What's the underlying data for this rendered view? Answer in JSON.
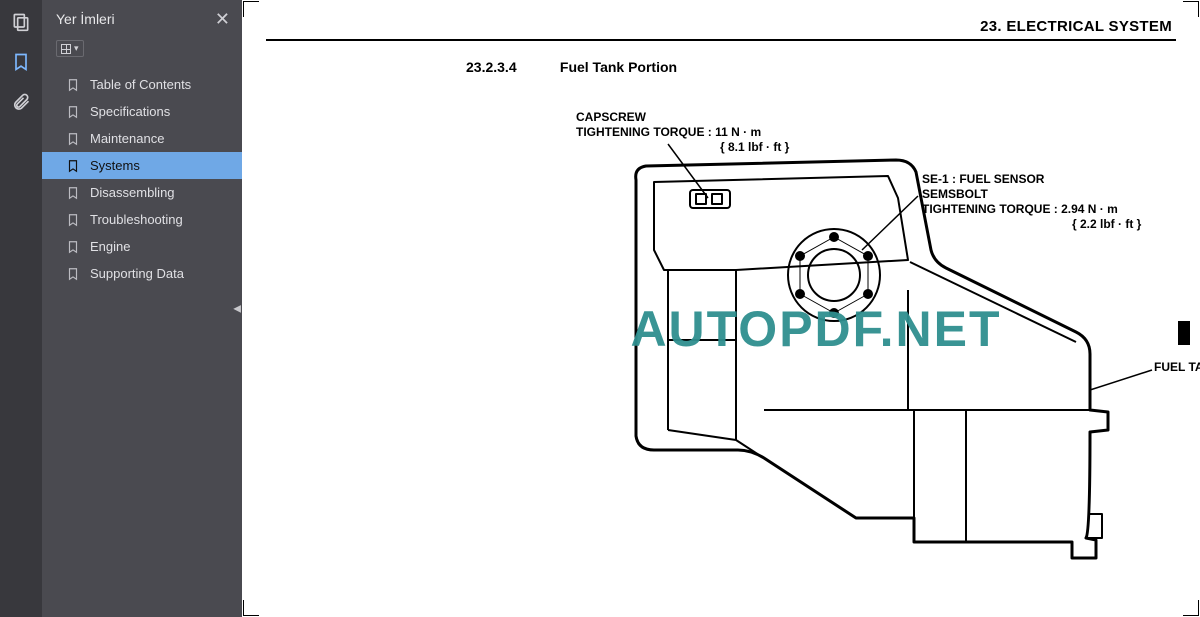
{
  "sidebar": {
    "title": "Yer İmleri",
    "close_glyph": "✕",
    "items": [
      {
        "label": "Table of Contents",
        "selected": false
      },
      {
        "label": "Specifications",
        "selected": false
      },
      {
        "label": "Maintenance",
        "selected": false
      },
      {
        "label": "Systems",
        "selected": true
      },
      {
        "label": "Disassembling",
        "selected": false
      },
      {
        "label": "Troubleshooting",
        "selected": false
      },
      {
        "label": "Engine",
        "selected": false
      },
      {
        "label": "Supporting Data",
        "selected": false
      }
    ]
  },
  "rail": {
    "icons": [
      "thumbnails-icon",
      "bookmark-icon",
      "attachment-icon"
    ],
    "active": "bookmark-icon"
  },
  "document": {
    "header": "23. ELECTRICAL SYSTEM",
    "section_number": "23.2.3.4",
    "section_title": "Fuel Tank Portion",
    "watermark": "AUTOPDF.NET",
    "callouts": {
      "capscrew": {
        "line1": "CAPSCREW",
        "line2": "TIGHTENING TORQUE : 11 N · m",
        "line3": "{ 8.1 lbf · ft }"
      },
      "sensor": {
        "line1": "SE-1 : FUEL SENSOR",
        "line2": "SEMSBOLT",
        "line3": "TIGHTENING TORQUE : 2.94 N · m",
        "line4": "{ 2.2 lbf · ft }"
      },
      "tank": {
        "line1": "FUEL TANK"
      }
    },
    "figure_style": {
      "stroke": "#000000",
      "stroke_width_outer": 3,
      "stroke_width_inner": 2,
      "leader_width": 1.5,
      "watermark_color": "#2f8f8f"
    }
  }
}
